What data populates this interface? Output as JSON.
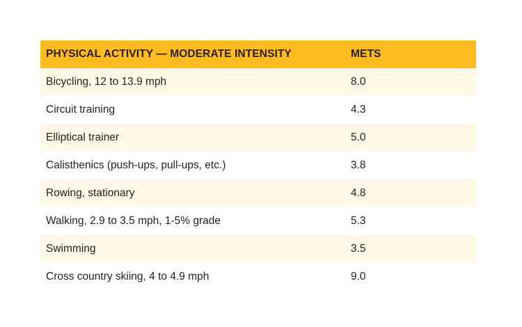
{
  "table": {
    "headers": [
      "PHYSICAL ACTIVITY — MODERATE INTENSITY",
      "METS"
    ],
    "rows": [
      [
        "Bicycling, 12 to 13.9 mph",
        "8.0"
      ],
      [
        "Circuit training",
        "4.3"
      ],
      [
        "Elliptical trainer",
        "5.0"
      ],
      [
        "Calisthenics (push-ups, pull-ups, etc.)",
        "3.8"
      ],
      [
        "Rowing, stationary",
        "4.8"
      ],
      [
        "Walking, 2.9 to 3.5 mph, 1-5% grade",
        "5.3"
      ],
      [
        "Swimming",
        "3.5"
      ],
      [
        "Cross country skiing, 4 to 4.9 mph",
        "9.0"
      ]
    ]
  },
  "colors": {
    "header_bg": "#fdbb22",
    "alt_row_bg": "#fff8e6",
    "text": "#222222"
  }
}
